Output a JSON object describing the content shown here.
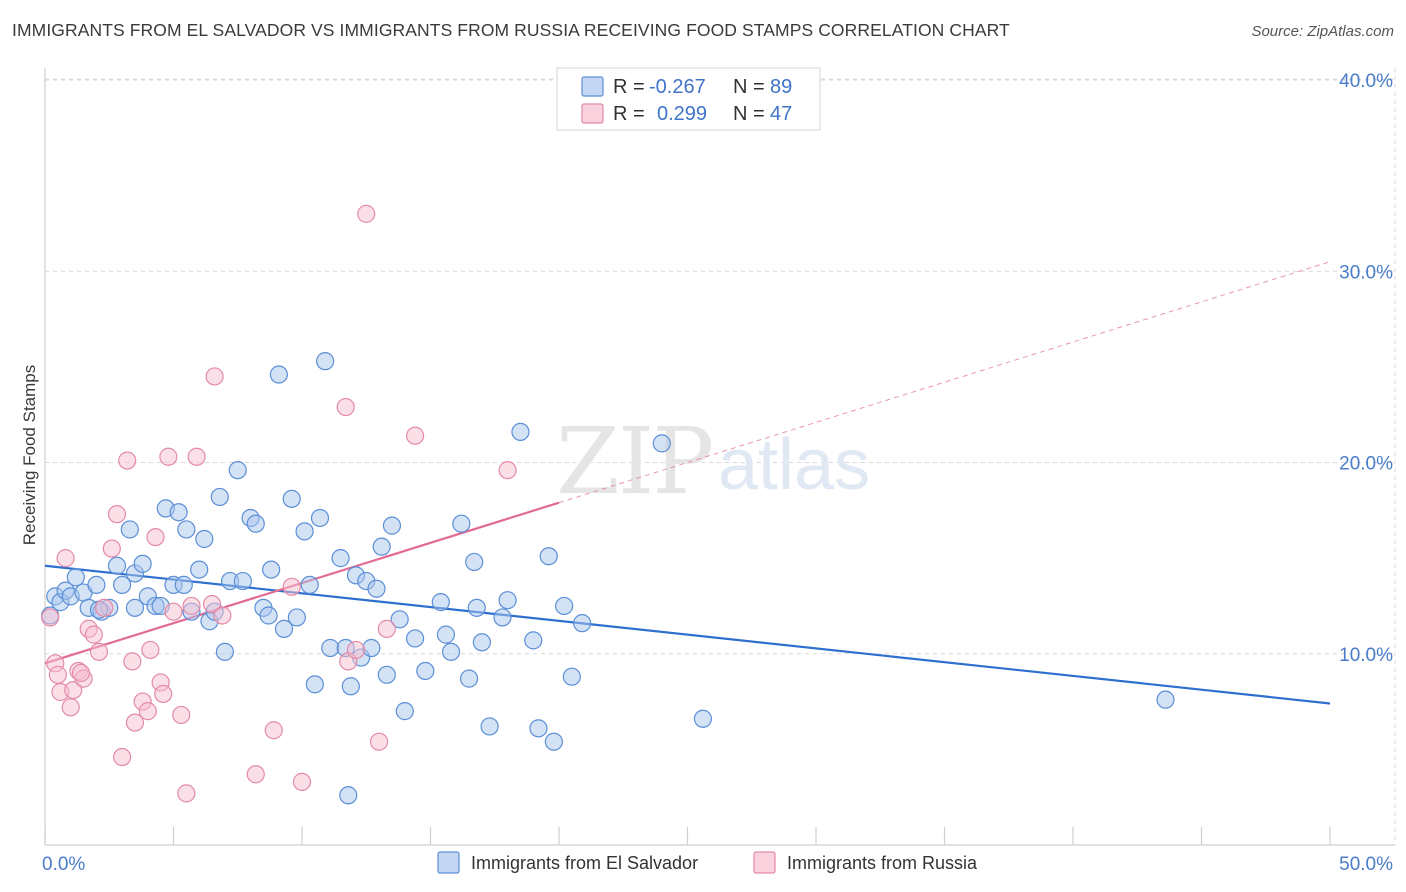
{
  "title": "IMMIGRANTS FROM EL SALVADOR VS IMMIGRANTS FROM RUSSIA RECEIVING FOOD STAMPS CORRELATION CHART",
  "source": "Source: ZipAtlas.com",
  "watermark": {
    "zip": "ZIP",
    "atlas": "atlas"
  },
  "colors": {
    "blue_fill": "#a9c6ee",
    "blue_stroke": "#5b8fd6",
    "blue_line": "#2f6fcf",
    "pink_fill": "#f6bfd0",
    "pink_stroke": "#e48aa8",
    "pink_line": "#e26b93",
    "grid": "#d9d9d9",
    "tick_text": "#4a7cc9"
  },
  "legend": {
    "rows": [
      {
        "r_label": "R =",
        "r_value": "-0.267",
        "n_label": "N =",
        "n_value": "89"
      },
      {
        "r_label": "R =",
        "r_value": "0.299",
        "n_label": "N =",
        "n_value": "47"
      }
    ]
  },
  "chart_data": {
    "type": "scatter",
    "title": "IMMIGRANTS FROM EL SALVADOR VS IMMIGRANTS FROM RUSSIA RECEIVING FOOD STAMPS CORRELATION CHART",
    "xlabel": "",
    "ylabel": "Receiving Food Stamps",
    "xlim": [
      0,
      50
    ],
    "ylim": [
      0,
      40
    ],
    "x_tick_labels": [
      "0.0%",
      "50.0%"
    ],
    "y_ticks": [
      10,
      20,
      30,
      40
    ],
    "y_tick_labels": [
      "10.0%",
      "20.0%",
      "30.0%",
      "40.0%"
    ],
    "grid": true,
    "legend_position": "top-center",
    "series": [
      {
        "name": "Immigrants from El Salvador",
        "color": "#a9c6ee",
        "trend": {
          "x": [
            0,
            50
          ],
          "y": [
            14.6,
            7.4
          ],
          "solid_to": 50
        },
        "points": [
          [
            0.2,
            12.0
          ],
          [
            0.4,
            13.0
          ],
          [
            0.6,
            12.7
          ],
          [
            0.8,
            13.3
          ],
          [
            1.0,
            13.0
          ],
          [
            1.2,
            14.0
          ],
          [
            1.5,
            13.2
          ],
          [
            1.7,
            12.4
          ],
          [
            2.0,
            13.6
          ],
          [
            2.2,
            12.2
          ],
          [
            2.5,
            12.4
          ],
          [
            2.8,
            14.6
          ],
          [
            3.0,
            13.6
          ],
          [
            3.3,
            16.5
          ],
          [
            3.5,
            14.2
          ],
          [
            3.8,
            14.7
          ],
          [
            4.0,
            13.0
          ],
          [
            4.3,
            12.5
          ],
          [
            4.5,
            12.5
          ],
          [
            4.7,
            17.6
          ],
          [
            5.0,
            13.6
          ],
          [
            5.2,
            17.4
          ],
          [
            5.4,
            13.6
          ],
          [
            5.5,
            16.5
          ],
          [
            5.7,
            12.2
          ],
          [
            6.0,
            14.4
          ],
          [
            6.2,
            16.0
          ],
          [
            6.4,
            11.7
          ],
          [
            6.6,
            12.2
          ],
          [
            6.8,
            18.2
          ],
          [
            7.0,
            10.1
          ],
          [
            7.2,
            13.8
          ],
          [
            7.5,
            19.6
          ],
          [
            7.7,
            13.8
          ],
          [
            8.0,
            17.1
          ],
          [
            8.2,
            16.8
          ],
          [
            8.5,
            12.4
          ],
          [
            8.7,
            12.0
          ],
          [
            8.8,
            14.4
          ],
          [
            9.1,
            24.6
          ],
          [
            9.3,
            11.3
          ],
          [
            9.6,
            18.1
          ],
          [
            9.8,
            11.9
          ],
          [
            10.1,
            16.4
          ],
          [
            10.3,
            13.6
          ],
          [
            10.5,
            8.4
          ],
          [
            10.7,
            17.1
          ],
          [
            10.9,
            25.3
          ],
          [
            11.1,
            10.3
          ],
          [
            11.5,
            15.0
          ],
          [
            11.7,
            10.3
          ],
          [
            11.9,
            8.3
          ],
          [
            12.1,
            14.1
          ],
          [
            11.8,
            2.6
          ],
          [
            12.3,
            9.8
          ],
          [
            12.5,
            13.8
          ],
          [
            12.7,
            10.3
          ],
          [
            12.9,
            13.4
          ],
          [
            13.1,
            15.6
          ],
          [
            13.3,
            8.9
          ],
          [
            13.5,
            16.7
          ],
          [
            13.8,
            11.8
          ],
          [
            14.0,
            7.0
          ],
          [
            14.4,
            10.8
          ],
          [
            14.8,
            9.1
          ],
          [
            15.4,
            12.7
          ],
          [
            15.6,
            11.0
          ],
          [
            15.8,
            10.1
          ],
          [
            16.2,
            16.8
          ],
          [
            16.5,
            8.7
          ],
          [
            16.7,
            14.8
          ],
          [
            16.8,
            12.4
          ],
          [
            17.0,
            10.6
          ],
          [
            17.3,
            6.2
          ],
          [
            17.8,
            11.9
          ],
          [
            18.0,
            12.8
          ],
          [
            18.5,
            21.6
          ],
          [
            19.0,
            10.7
          ],
          [
            19.2,
            6.1
          ],
          [
            19.6,
            15.1
          ],
          [
            19.8,
            5.4
          ],
          [
            20.2,
            12.5
          ],
          [
            20.5,
            8.8
          ],
          [
            20.9,
            11.6
          ],
          [
            24.0,
            21.0
          ],
          [
            25.6,
            6.6
          ],
          [
            43.6,
            7.6
          ],
          [
            3.5,
            12.4
          ],
          [
            2.1,
            12.3
          ]
        ]
      },
      {
        "name": "Immigrants from Russia",
        "color": "#f6bfd0",
        "trend": {
          "x": [
            0,
            50
          ],
          "y": [
            9.5,
            30.5
          ],
          "solid_to": 20
        },
        "points": [
          [
            0.2,
            11.9
          ],
          [
            0.4,
            9.5
          ],
          [
            0.5,
            8.9
          ],
          [
            0.6,
            8.0
          ],
          [
            0.8,
            15.0
          ],
          [
            1.0,
            7.2
          ],
          [
            1.1,
            8.1
          ],
          [
            1.3,
            9.1
          ],
          [
            1.5,
            8.7
          ],
          [
            1.7,
            11.3
          ],
          [
            1.9,
            11.0
          ],
          [
            2.1,
            10.1
          ],
          [
            2.3,
            12.4
          ],
          [
            2.6,
            15.5
          ],
          [
            2.8,
            17.3
          ],
          [
            3.0,
            4.6
          ],
          [
            3.2,
            20.1
          ],
          [
            3.4,
            9.6
          ],
          [
            3.5,
            6.4
          ],
          [
            3.8,
            7.5
          ],
          [
            4.1,
            10.2
          ],
          [
            4.3,
            16.1
          ],
          [
            4.5,
            8.5
          ],
          [
            4.6,
            7.9
          ],
          [
            4.8,
            20.3
          ],
          [
            5.0,
            12.2
          ],
          [
            5.3,
            6.8
          ],
          [
            5.5,
            2.7
          ],
          [
            5.7,
            12.5
          ],
          [
            5.9,
            20.3
          ],
          [
            6.5,
            12.6
          ],
          [
            6.6,
            24.5
          ],
          [
            6.9,
            12.0
          ],
          [
            8.2,
            3.7
          ],
          [
            8.9,
            6.0
          ],
          [
            9.6,
            13.5
          ],
          [
            10.0,
            3.3
          ],
          [
            11.7,
            22.9
          ],
          [
            11.8,
            9.6
          ],
          [
            12.1,
            10.2
          ],
          [
            12.5,
            33.0
          ],
          [
            13.0,
            5.4
          ],
          [
            13.3,
            11.3
          ],
          [
            14.4,
            21.4
          ],
          [
            18.0,
            19.6
          ],
          [
            4.0,
            7.0
          ],
          [
            1.4,
            9.0
          ]
        ]
      }
    ]
  },
  "bottom_legend": {
    "items": [
      {
        "label": "Immigrants from El Salvador"
      },
      {
        "label": "Immigrants from Russia"
      }
    ]
  }
}
